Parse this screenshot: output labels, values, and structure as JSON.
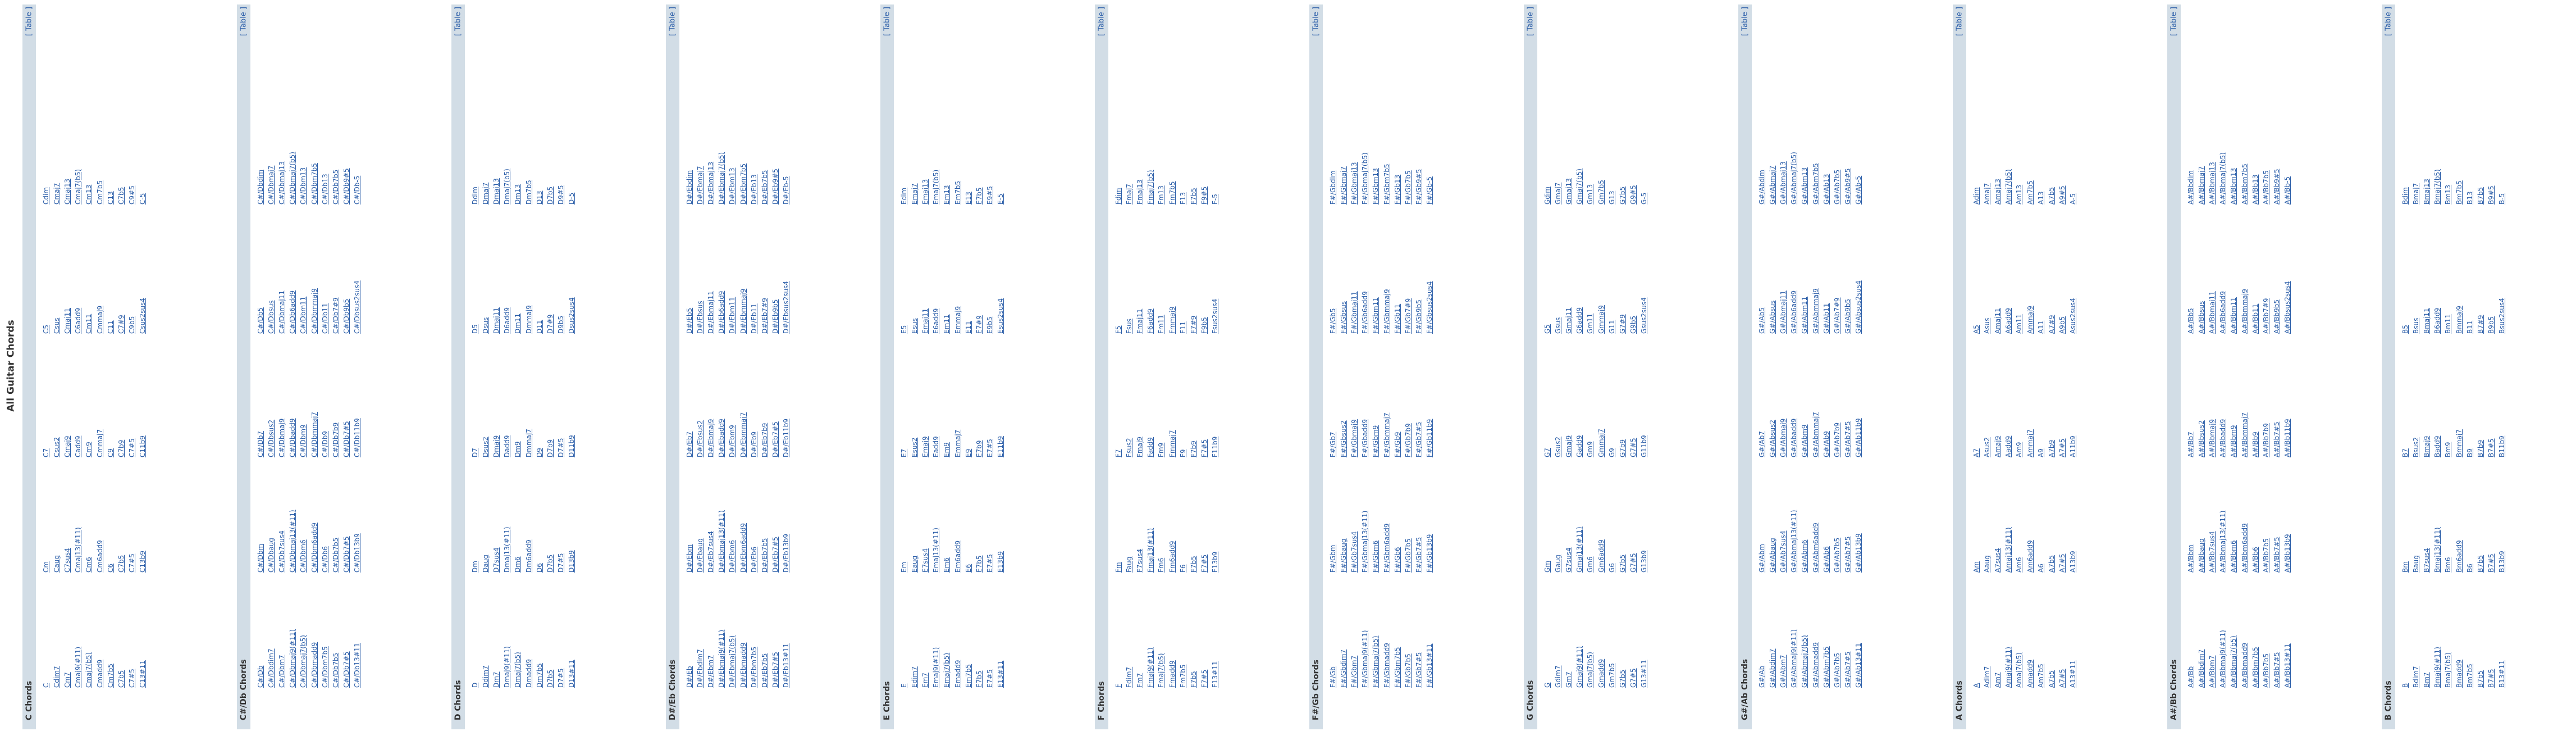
{
  "page_title": "All Guitar Chords",
  "table_link_label": "[ Table ]",
  "sections": [
    {
      "title": "C Chords",
      "rows": [
        [
          "C",
          "Cm",
          "C7",
          "C5",
          "Cdim"
        ],
        [
          "Cdim7",
          "Caug",
          "Csus2",
          "Csus",
          "Cmaj7"
        ],
        [
          "Cm7",
          "C7sus4",
          "Cmaj9",
          "Cmaj11",
          "Cmaj13"
        ],
        [
          "Cmaj9(#11)",
          "Cmaj13(#11)",
          "Cadd9",
          "C6add9",
          "Cmaj7(b5)"
        ],
        [
          "Cmaj7(b5)",
          "Cm6",
          "Cm9",
          "Cm11",
          "Cm13"
        ],
        [
          "Cmadd9",
          "Cm6add9",
          "Cmmaj7",
          "Cmmaj9",
          "Cm7b5"
        ],
        [
          "Cm7b5",
          "C6",
          "C9",
          "C11",
          "C13"
        ],
        [
          "C7b5",
          "C7b5",
          "C7b9",
          "C7#9",
          "C7b5"
        ],
        [
          "C7#5",
          "C7#5",
          "C7#5",
          "C9b5",
          "C9#5"
        ],
        [
          "C13#11",
          "C13b9",
          "C11b9",
          "Csus2sus4",
          "C-5"
        ]
      ]
    },
    {
      "title": "C#/Db Chords",
      "rows": [
        [
          "C#/Db",
          "C#/Dbm",
          "C#/Db7",
          "C#/Db5",
          "C#/Dbdim"
        ],
        [
          "C#/Dbdim7",
          "C#/Dbaug",
          "C#/Dbsus2",
          "C#/Dbsus",
          "C#/Dbmaj7"
        ],
        [
          "C#/Dbm7",
          "C#/Db7sus4",
          "C#/Dbmaj9",
          "C#/Dbmaj11",
          "C#/Dbmaj13"
        ],
        [
          "C#/Dbmaj9(#11)",
          "C#/Dbmaj13(#11)",
          "C#/Dbadd9",
          "C#/Db6add9",
          "C#/Dbmaj7(b5)"
        ],
        [
          "C#/Dbmaj7(b5)",
          "C#/Dbm6",
          "C#/Dbm9",
          "C#/Dbm11",
          "C#/Dbm13"
        ],
        [
          "C#/Dbmadd9",
          "C#/Dbm6add9",
          "C#/Dbmmaj7",
          "C#/Dbmmaj9",
          "C#/Dbm7b5"
        ],
        [
          "C#/Dbm7b5",
          "C#/Db6",
          "C#/Db9",
          "C#/Db11",
          "C#/Db13"
        ],
        [
          "C#/Db7b5",
          "C#/Db7b5",
          "C#/Db7b9",
          "C#/Db7#9",
          "C#/Db7b5"
        ],
        [
          "C#/Db7#5",
          "C#/Db7#5",
          "C#/Db7#5",
          "C#/Db9b5",
          "C#/Db9#5"
        ],
        [
          "C#/Db13#11",
          "C#/Db13b9",
          "C#/Db11b9",
          "C#/Dbsus2sus4",
          "C#/Db-5"
        ]
      ]
    },
    {
      "title": "D Chords",
      "rows": [
        [
          "D",
          "Dm",
          "D7",
          "D5",
          "Ddim"
        ],
        [
          "Ddim7",
          "Daug",
          "Dsus2",
          "Dsus",
          "Dmaj7"
        ],
        [
          "Dm7",
          "D7sus4",
          "Dmaj9",
          "Dmaj11",
          "Dmaj13"
        ],
        [
          "Dmaj9(#11)",
          "Dmaj13(#11)",
          "Dadd9",
          "D6add9",
          "Dmaj7(b5)"
        ],
        [
          "Dmaj7(b5)",
          "Dm6",
          "Dm9",
          "Dm11",
          "Dm13"
        ],
        [
          "Dmadd9",
          "Dm6add9",
          "Dmmaj7",
          "Dmmaj9",
          "Dm7b5"
        ],
        [
          "Dm7b5",
          "D6",
          "D9",
          "D11",
          "D13"
        ],
        [
          "D7b5",
          "D7b5",
          "D7b9",
          "D7#9",
          "D7b5"
        ],
        [
          "D7#5",
          "D7#5",
          "D7#5",
          "D9b5",
          "D9#5"
        ],
        [
          "D13#11",
          "D13b9",
          "D11b9",
          "Dsus2sus4",
          "D-5"
        ]
      ]
    },
    {
      "title": "D#/Eb Chords",
      "rows": [
        [
          "D#/Eb",
          "D#/Ebm",
          "D#/Eb7",
          "D#/Eb5",
          "D#/Ebdim"
        ],
        [
          "D#/Ebdim7",
          "D#/Ebaug",
          "D#/Ebsus2",
          "D#/Ebsus",
          "D#/Ebmaj7"
        ],
        [
          "D#/Ebm7",
          "D#/Eb7sus4",
          "D#/Ebmaj9",
          "D#/Ebmaj11",
          "D#/Ebmaj13"
        ],
        [
          "D#/Ebmaj9(#11)",
          "D#/Ebmaj13(#11)",
          "D#/Ebadd9",
          "D#/Eb6add9",
          "D#/Ebmaj7(b5)"
        ],
        [
          "D#/Ebmaj7(b5)",
          "D#/Ebm6",
          "D#/Ebm9",
          "D#/Ebm11",
          "D#/Ebm13"
        ],
        [
          "D#/Ebmadd9",
          "D#/Ebm6add9",
          "D#/Ebmmaj7",
          "D#/Ebmmaj9",
          "D#/Ebm7b5"
        ],
        [
          "D#/Ebm7b5",
          "D#/Eb6",
          "D#/Eb9",
          "D#/Eb11",
          "D#/Eb13"
        ],
        [
          "D#/Eb7b5",
          "D#/Eb7b5",
          "D#/Eb7b9",
          "D#/Eb7#9",
          "D#/Eb7b5"
        ],
        [
          "D#/Eb7#5",
          "D#/Eb7#5",
          "D#/Eb7#5",
          "D#/Eb9b5",
          "D#/Eb9#5"
        ],
        [
          "D#/Eb13#11",
          "D#/Eb13b9",
          "D#/Eb11b9",
          "D#/Ebsus2sus4",
          "D#/Eb-5"
        ]
      ]
    },
    {
      "title": "E Chords",
      "rows": [
        [
          "E",
          "Em",
          "E7",
          "E5",
          "Edim"
        ],
        [
          "Edim7",
          "Eaug",
          "Esus2",
          "Esus",
          "Emaj7"
        ],
        [
          "Em7",
          "E7sus4",
          "Emaj9",
          "Emaj11",
          "Emaj13"
        ],
        [
          "Emaj9(#11)",
          "Emaj13(#11)",
          "Eadd9",
          "E6add9",
          "Emaj7(b5)"
        ],
        [
          "Emaj7(b5)",
          "Em6",
          "Em9",
          "Em11",
          "Em13"
        ],
        [
          "Emadd9",
          "Em6add9",
          "Emmaj7",
          "Emmaj9",
          "Em7b5"
        ],
        [
          "Em7b5",
          "E6",
          "E9",
          "E11",
          "E13"
        ],
        [
          "E7b5",
          "E7b5",
          "E7b9",
          "E7#9",
          "E7b5"
        ],
        [
          "E7#5",
          "E7#5",
          "E7#5",
          "E9b5",
          "E9#5"
        ],
        [
          "E13#11",
          "E13b9",
          "E11b9",
          "Esus2sus4",
          "E-5"
        ]
      ]
    },
    {
      "title": "F Chords",
      "rows": [
        [
          "F",
          "Fm",
          "F7",
          "F5",
          "Fdim"
        ],
        [
          "Fdim7",
          "Faug",
          "Fsus2",
          "Fsus",
          "Fmaj7"
        ],
        [
          "Fm7",
          "F7sus4",
          "Fmaj9",
          "Fmaj11",
          "Fmaj13"
        ],
        [
          "Fmaj9(#11)",
          "Fmaj13(#11)",
          "Fadd9",
          "F6add9",
          "Fmaj7(b5)"
        ],
        [
          "Fmaj7(b5)",
          "Fm6",
          "Fm9",
          "Fm11",
          "Fm13"
        ],
        [
          "Fmadd9",
          "Fm6add9",
          "Fmmaj7",
          "Fmmaj9",
          "Fm7b5"
        ],
        [
          "Fm7b5",
          "F6",
          "F9",
          "F11",
          "F13"
        ],
        [
          "F7b5",
          "F7b5",
          "F7b9",
          "F7#9",
          "F7b5"
        ],
        [
          "F7#5",
          "F7#5",
          "F7#5",
          "F9b5",
          "F9#5"
        ],
        [
          "F13#11",
          "F13b9",
          "F11b9",
          "Fsus2sus4",
          "F-5"
        ]
      ]
    },
    {
      "title": "F#/Gb Chords",
      "rows": [
        [
          "F#/Gb",
          "F#/Gbm",
          "F#/Gb7",
          "F#/Gb5",
          "F#/Gbdim"
        ],
        [
          "F#/Gbdim7",
          "F#/Gbaug",
          "F#/Gbsus2",
          "F#/Gbsus",
          "F#/Gbmaj7"
        ],
        [
          "F#/Gbm7",
          "F#/Gb7sus4",
          "F#/Gbmaj9",
          "F#/Gbmaj11",
          "F#/Gbmaj13"
        ],
        [
          "F#/Gbmaj9(#11)",
          "F#/Gbmaj13(#11)",
          "F#/Gbadd9",
          "F#/Gb6add9",
          "F#/Gbmaj7(b5)"
        ],
        [
          "F#/Gbmaj7(b5)",
          "F#/Gbm6",
          "F#/Gbm9",
          "F#/Gbm11",
          "F#/Gbm13"
        ],
        [
          "F#/Gbmadd9",
          "F#/Gbm6add9",
          "F#/Gbmmaj7",
          "F#/Gbmmaj9",
          "F#/Gbm7b5"
        ],
        [
          "F#/Gbm7b5",
          "F#/Gb6",
          "F#/Gb9",
          "F#/Gb11",
          "F#/Gb13"
        ],
        [
          "F#/Gb7b5",
          "F#/Gb7b5",
          "F#/Gb7b9",
          "F#/Gb7#9",
          "F#/Gb7b5"
        ],
        [
          "F#/Gb7#5",
          "F#/Gb7#5",
          "F#/Gb7#5",
          "F#/Gb9b5",
          "F#/Gb9#5"
        ],
        [
          "F#/Gb13#11",
          "F#/Gb13b9",
          "F#/Gb11b9",
          "F#/Gbsus2sus4",
          "F#/Gb-5"
        ]
      ]
    },
    {
      "title": "G Chords",
      "rows": [
        [
          "G",
          "Gm",
          "G7",
          "G5",
          "Gdim"
        ],
        [
          "Gdim7",
          "Gaug",
          "Gsus2",
          "Gsus",
          "Gmaj7"
        ],
        [
          "Gm7",
          "G7sus4",
          "Gmaj9",
          "Gmaj11",
          "Gmaj13"
        ],
        [
          "Gmaj9(#11)",
          "Gmaj13(#11)",
          "Gadd9",
          "G6add9",
          "Gmaj7(b5)"
        ],
        [
          "Gmaj7(b5)",
          "Gm6",
          "Gm9",
          "Gm11",
          "Gm13"
        ],
        [
          "Gmadd9",
          "Gm6add9",
          "Gmmaj7",
          "Gmmaj9",
          "Gm7b5"
        ],
        [
          "Gm7b5",
          "G6",
          "G9",
          "G11",
          "G13"
        ],
        [
          "G7b5",
          "G7b5",
          "G7b9",
          "G7#9",
          "G7b5"
        ],
        [
          "G7#5",
          "G7#5",
          "G7#5",
          "G9b5",
          "G9#5"
        ],
        [
          "G13#11",
          "G13b9",
          "G11b9",
          "Gsus2sus4",
          "G-5"
        ]
      ]
    },
    {
      "title": "G#/Ab Chords",
      "rows": [
        [
          "G#/Ab",
          "G#/Abm",
          "G#/Ab7",
          "G#/Ab5",
          "G#/Abdim"
        ],
        [
          "G#/Abdim7",
          "G#/Abaug",
          "G#/Absus2",
          "G#/Absus",
          "G#/Abmaj7"
        ],
        [
          "G#/Abm7",
          "G#/Ab7sus4",
          "G#/Abmaj9",
          "G#/Abmaj11",
          "G#/Abmaj13"
        ],
        [
          "G#/Abmaj9(#11)",
          "G#/Abmaj13(#11)",
          "G#/Abadd9",
          "G#/Ab6add9",
          "G#/Abmaj7(b5)"
        ],
        [
          "G#/Abmaj7(b5)",
          "G#/Abm6",
          "G#/Abm9",
          "G#/Abm11",
          "G#/Abm13"
        ],
        [
          "G#/Abmadd9",
          "G#/Abm6add9",
          "G#/Abmmaj7",
          "G#/Abmmaj9",
          "G#/Abm7b5"
        ],
        [
          "G#/Abm7b5",
          "G#/Ab6",
          "G#/Ab9",
          "G#/Ab11",
          "G#/Ab13"
        ],
        [
          "G#/Ab7b5",
          "G#/Ab7b5",
          "G#/Ab7b9",
          "G#/Ab7#9",
          "G#/Ab7b5"
        ],
        [
          "G#/Ab7#5",
          "G#/Ab7#5",
          "G#/Ab7#5",
          "G#/Ab9b5",
          "G#/Ab9#5"
        ],
        [
          "G#/Ab13#11",
          "G#/Ab13b9",
          "G#/Ab11b9",
          "G#/Absus2sus4",
          "G#/Ab-5"
        ]
      ]
    },
    {
      "title": "A Chords",
      "rows": [
        [
          "A",
          "Am",
          "A7",
          "A5",
          "Adim"
        ],
        [
          "Adim7",
          "Aaug",
          "Asus2",
          "Asus",
          "Amaj7"
        ],
        [
          "Am7",
          "A7sus4",
          "Amaj9",
          "Amaj11",
          "Amaj13"
        ],
        [
          "Amaj9(#11)",
          "Amaj13(#11)",
          "Aadd9",
          "A6add9",
          "Amaj7(b5)"
        ],
        [
          "Amaj7(b5)",
          "Am6",
          "Am9",
          "Am11",
          "Am13"
        ],
        [
          "Amadd9",
          "Am6add9",
          "Ammaj7",
          "Ammaj9",
          "Am7b5"
        ],
        [
          "Am7b5",
          "A6",
          "A9",
          "A11",
          "A13"
        ],
        [
          "A7b5",
          "A7b5",
          "A7b9",
          "A7#9",
          "A7b5"
        ],
        [
          "A7#5",
          "A7#5",
          "A7#5",
          "A9b5",
          "A9#5"
        ],
        [
          "A13#11",
          "A13b9",
          "A11b9",
          "Asus2sus4",
          "A-5"
        ]
      ]
    },
    {
      "title": "A#/Bb Chords",
      "rows": [
        [
          "A#/Bb",
          "A#/Bbm",
          "A#/Bb7",
          "A#/Bb5",
          "A#/Bbdim"
        ],
        [
          "A#/Bbdim7",
          "A#/Bbaug",
          "A#/Bbsus2",
          "A#/Bbsus",
          "A#/Bbmaj7"
        ],
        [
          "A#/Bbm7",
          "A#/Bb7sus4",
          "A#/Bbmaj9",
          "A#/Bbmaj11",
          "A#/Bbmaj13"
        ],
        [
          "A#/Bbmaj9(#11)",
          "A#/Bbmaj13(#11)",
          "A#/Bbadd9",
          "A#/Bb6add9",
          "A#/Bbmaj7(b5)"
        ],
        [
          "A#/Bbmaj7(b5)",
          "A#/Bbm6",
          "A#/Bbm9",
          "A#/Bbm11",
          "A#/Bbm13"
        ],
        [
          "A#/Bbmadd9",
          "A#/Bbm6add9",
          "A#/Bbmmaj7",
          "A#/Bbmmaj9",
          "A#/Bbm7b5"
        ],
        [
          "A#/Bbm7b5",
          "A#/Bb6",
          "A#/Bb9",
          "A#/Bb11",
          "A#/Bb13"
        ],
        [
          "A#/Bb7b5",
          "A#/Bb7b5",
          "A#/Bb7b9",
          "A#/Bb7#9",
          "A#/Bb7b5"
        ],
        [
          "A#/Bb7#5",
          "A#/Bb7#5",
          "A#/Bb7#5",
          "A#/Bb9b5",
          "A#/Bb9#5"
        ],
        [
          "A#/Bb13#11",
          "A#/Bb13b9",
          "A#/Bb11b9",
          "A#/Bbsus2sus4",
          "A#/Bb-5"
        ]
      ]
    },
    {
      "title": "B Chords",
      "rows": [
        [
          "B",
          "Bm",
          "B7",
          "B5",
          "Bdim"
        ],
        [
          "Bdim7",
          "Baug",
          "Bsus2",
          "Bsus",
          "Bmaj7"
        ],
        [
          "Bm7",
          "B7sus4",
          "Bmaj9",
          "Bmaj11",
          "Bmaj13"
        ],
        [
          "Bmaj9(#11)",
          "Bmaj13(#11)",
          "Badd9",
          "B6add9",
          "Bmaj7(b5)"
        ],
        [
          "Bmaj7(b5)",
          "Bm6",
          "Bm9",
          "Bm11",
          "Bm13"
        ],
        [
          "Bmadd9",
          "Bm6add9",
          "Bmmaj7",
          "Bmmaj9",
          "Bm7b5"
        ],
        [
          "Bm7b5",
          "B6",
          "B9",
          "B11",
          "B13"
        ],
        [
          "B7b5",
          "B7b5",
          "B7b9",
          "B7#9",
          "B7b5"
        ],
        [
          "B7#5",
          "B7#5",
          "B7#5",
          "B9b5",
          "B9#5"
        ],
        [
          "B13#11",
          "B13b9",
          "B11b9",
          "Bsus2sus4",
          "B-5"
        ]
      ]
    }
  ]
}
